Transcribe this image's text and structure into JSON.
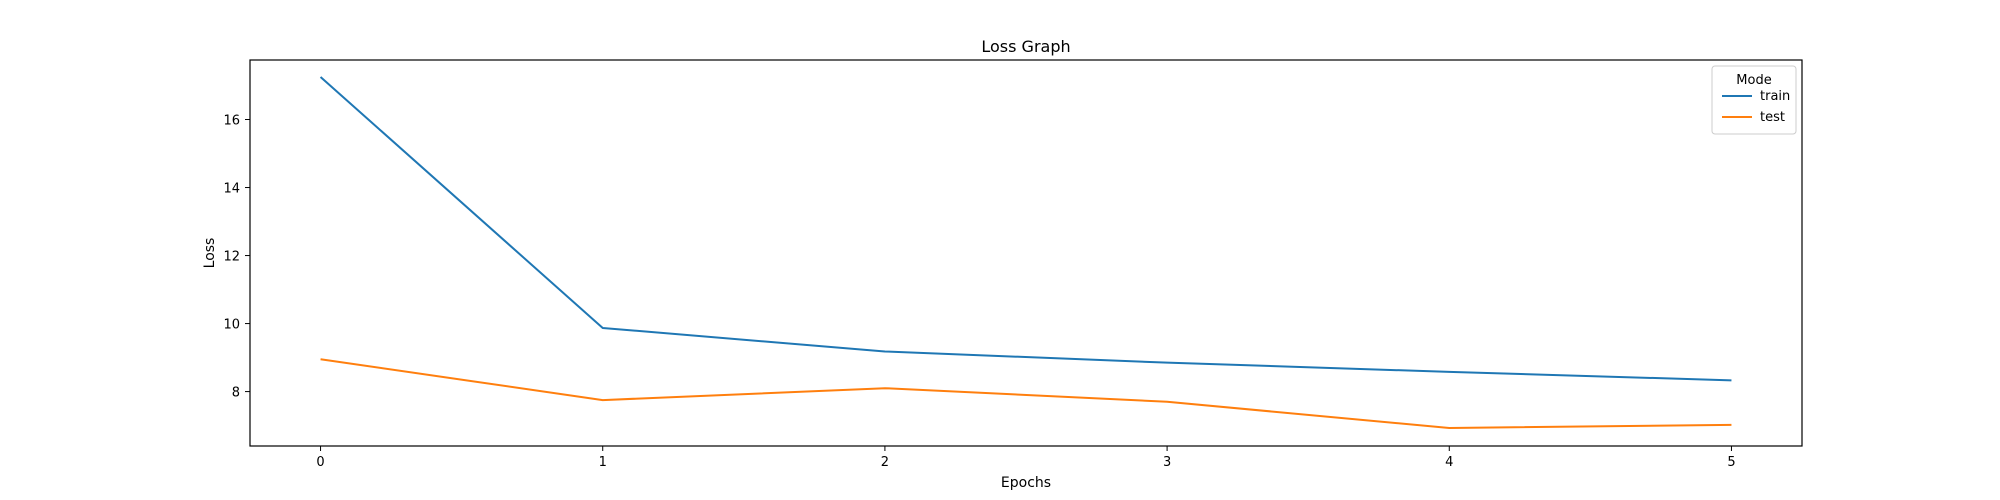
{
  "chart_data": {
    "type": "line",
    "title": "Loss Graph",
    "xlabel": "Epochs",
    "ylabel": "Loss",
    "x": [
      0,
      1,
      2,
      3,
      4,
      5
    ],
    "xticks": [
      "0",
      "1",
      "2",
      "3",
      "4",
      "5"
    ],
    "yticks": [
      "8",
      "10",
      "12",
      "14",
      "16"
    ],
    "xlim": [
      -0.25,
      5.25
    ],
    "ylim": [
      6.4,
      17.75
    ],
    "grid": false,
    "legend": {
      "title": "Mode",
      "position": "top-right"
    },
    "series": [
      {
        "name": "train",
        "color": "#1f77b4",
        "values": [
          17.25,
          9.87,
          9.18,
          8.85,
          8.58,
          8.33
        ]
      },
      {
        "name": "test",
        "color": "#ff7f0e",
        "values": [
          8.95,
          7.75,
          8.1,
          7.7,
          6.93,
          7.02
        ]
      }
    ]
  }
}
